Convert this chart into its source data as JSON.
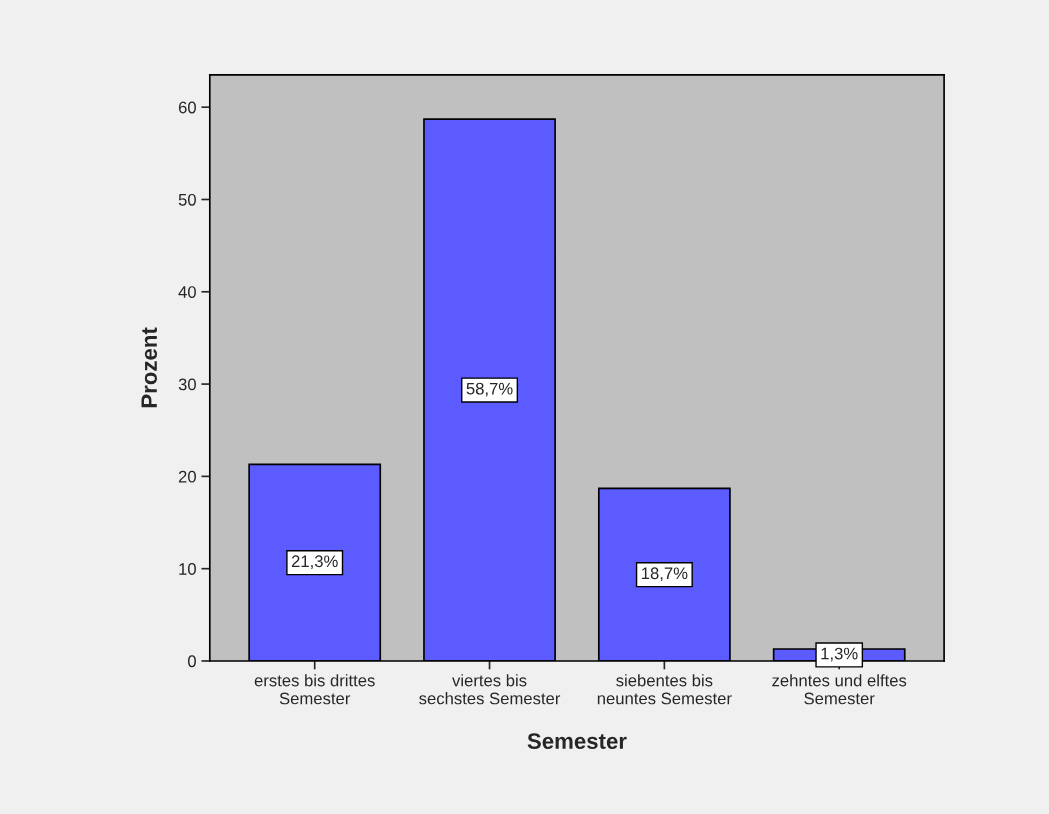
{
  "chart_data": {
    "type": "bar",
    "xlabel": "Semester",
    "ylabel": "Prozent",
    "categories": [
      "erstes bis drittes\nSemester",
      "viertes bis\nsechstes Semester",
      "siebentes bis\nneuntes Semester",
      "zehntes und elftes\nSemester"
    ],
    "values": [
      21.3,
      58.7,
      18.7,
      1.3
    ],
    "value_labels": [
      "21,3%",
      "58,7%",
      "18,7%",
      "1,3%"
    ],
    "color": "#5b5bff",
    "ylim": [
      0,
      63.5
    ],
    "yticks": [
      0,
      10,
      20,
      30,
      40,
      50,
      60
    ],
    "grid": false
  }
}
